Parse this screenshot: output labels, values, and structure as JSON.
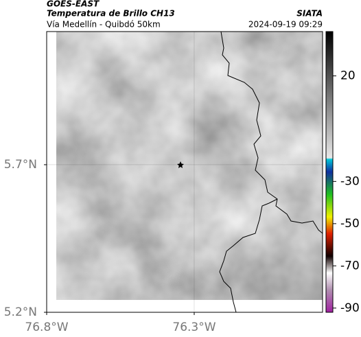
{
  "header": {
    "title": "GOES-EAST",
    "subtitle": "Temperatura de Brillo CH13",
    "source": "SIATA",
    "location": "Vía Medellín - Quibdó 50km",
    "datetime": "2024-09-19 09:29"
  },
  "map": {
    "lon_range": [
      -76.8,
      -75.865
    ],
    "lat_range": [
      5.2,
      6.151
    ],
    "lon_ticks": [
      {
        "value": -76.8,
        "label": "76.8°W"
      },
      {
        "value": -76.3,
        "label": "76.3°W"
      }
    ],
    "lat_ticks": [
      {
        "value": 5.2,
        "label": "5.2°N"
      },
      {
        "value": 5.7,
        "label": "5.7°N"
      }
    ]
  },
  "colorbar": {
    "range": [
      -92,
      41
    ],
    "ticks": [
      20,
      -30,
      -50,
      -70,
      -90
    ]
  }
}
